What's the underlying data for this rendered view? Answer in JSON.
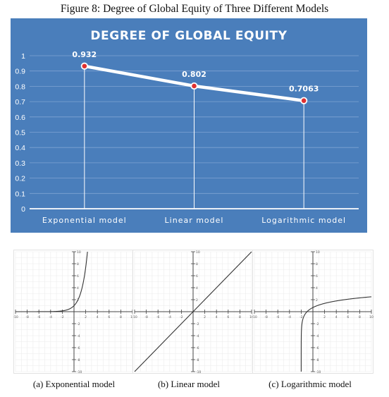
{
  "figure_caption": "Figure 8: Degree of Global Equity of Three Different Models",
  "chart_data": [
    {
      "type": "line",
      "title": "DEGREE OF GLOBAL EQUITY",
      "categories": [
        "Exponential model",
        "Linear model",
        "Logarithmic model"
      ],
      "values": [
        0.932,
        0.802,
        0.7063
      ],
      "data_labels": [
        "0.932",
        "0.802",
        "0.7063"
      ],
      "y_ticks": [
        "0",
        "0.1",
        "0.2",
        "0.3",
        "0.4",
        "0.5",
        "0.6",
        "0.7",
        "0.8",
        "0.9",
        "1"
      ],
      "ylim": [
        0,
        1
      ],
      "grid": true,
      "background_color": "#4a7ebb",
      "line_color": "#ffffff",
      "marker_color": "#e03030"
    },
    {
      "type": "line",
      "function": "exponential",
      "caption": "(a) Exponential model",
      "xlim": [
        -10,
        10
      ],
      "ylim": [
        -10,
        10
      ]
    },
    {
      "type": "line",
      "function": "linear",
      "caption": "(b) Linear model",
      "xlim": [
        -10,
        10
      ],
      "ylim": [
        -10,
        10
      ]
    },
    {
      "type": "line",
      "function": "logarithmic",
      "caption": "(c) Logarithmic model",
      "xlim": [
        -10,
        10
      ],
      "ylim": [
        -10,
        10
      ]
    }
  ]
}
